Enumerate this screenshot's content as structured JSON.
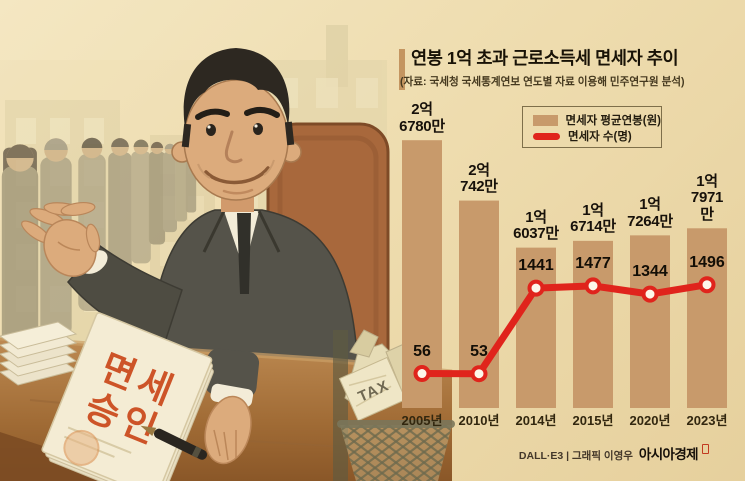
{
  "illustration": {
    "approval_doc": {
      "line1": "면세",
      "line2": "승인"
    },
    "tax_label": "TAX"
  },
  "chart": {
    "title": "연봉 1억 초과 근로소득세 면세자 추이",
    "source": "(자료: 국세청 국세통계연보 연도별 자료 이용해 민주연구원 분석)",
    "legend": [
      {
        "label": "면세자 평균연봉(원)",
        "type": "bar",
        "color": "#c89a6b"
      },
      {
        "label": "면세자 수(명)",
        "type": "line",
        "color": "#e0241c"
      }
    ]
  },
  "chart_data": {
    "type": "bar+line",
    "title": "연봉 1억 초과 근로소득세 면세자 추이",
    "categories": [
      "2005년",
      "2010년",
      "2014년",
      "2015년",
      "2020년",
      "2023년"
    ],
    "series": [
      {
        "name": "면세자 평균연봉(원)",
        "type": "bar",
        "unit": "만원",
        "color": "#c89a6b",
        "values": [
          26780,
          20742,
          16037,
          16714,
          17264,
          17971
        ],
        "labels": [
          "2억\n6780만",
          "2억\n742만",
          "1억\n6037만",
          "1억\n6714만",
          "1억\n7264만",
          "1억\n7971만"
        ]
      },
      {
        "name": "면세자 수(명)",
        "type": "line",
        "unit": "명",
        "color": "#e0241c",
        "values": [
          56,
          53,
          1441,
          1477,
          1344,
          1496
        ]
      }
    ],
    "grid": false,
    "legend_position": "top-right"
  },
  "credit": {
    "left": "DALL·E3 | 그래픽 이영우",
    "brand": "아시아경제"
  }
}
